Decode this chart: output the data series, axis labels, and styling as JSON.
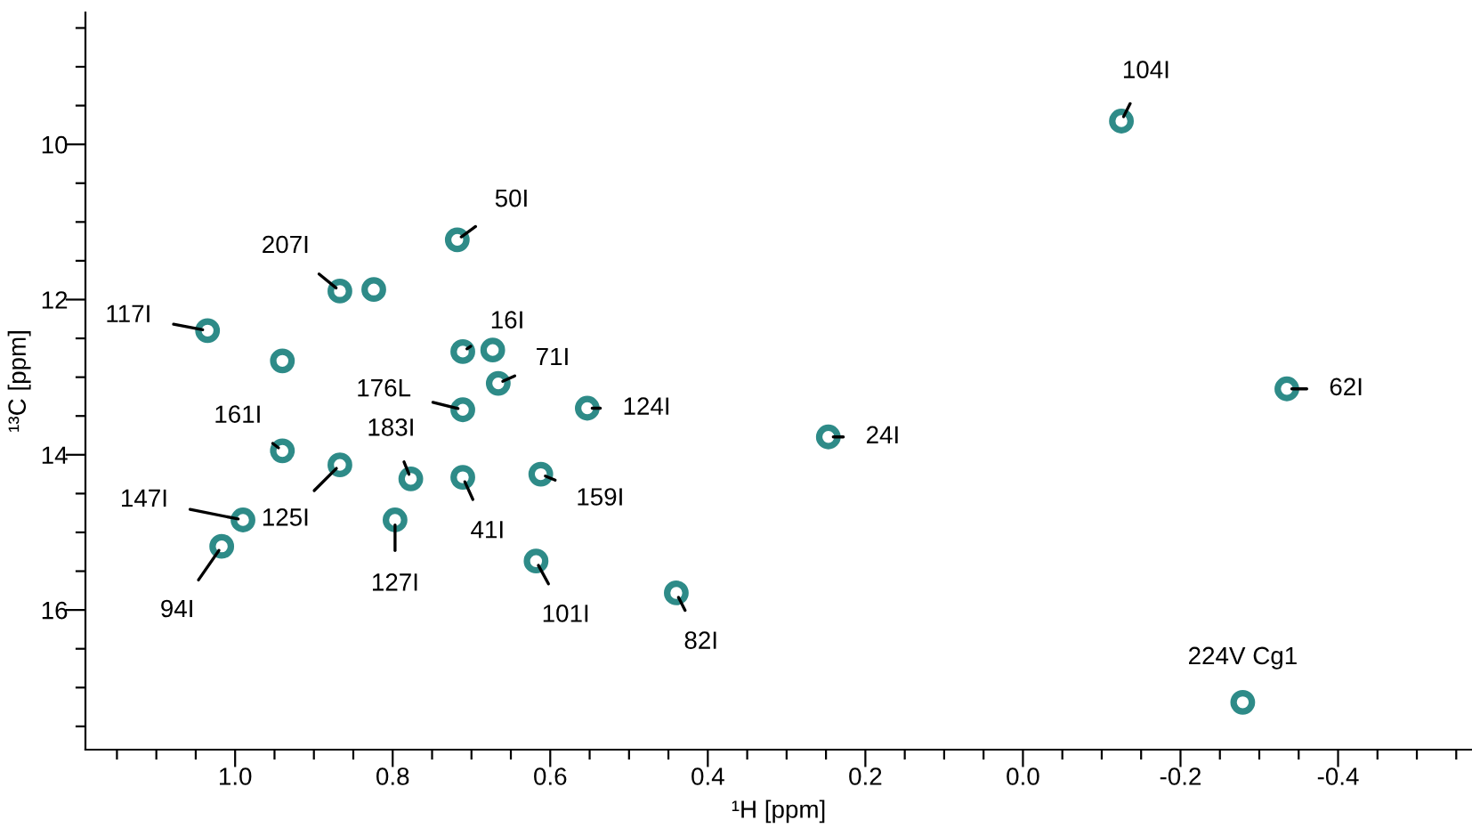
{
  "chart_data": {
    "type": "scatter",
    "xlabel": "¹H [ppm]",
    "ylabel": "¹³C [ppm]",
    "xlim": [
      1.19,
      -0.57
    ],
    "ylim": [
      17.8,
      8.3
    ],
    "xticks": [
      {
        "value": 1.15,
        "label": null
      },
      {
        "value": 1.1,
        "label": null
      },
      {
        "value": 1.05,
        "label": null
      },
      {
        "value": 1.0,
        "label": "1.0"
      },
      {
        "value": 0.95,
        "label": null
      },
      {
        "value": 0.9,
        "label": null
      },
      {
        "value": 0.85,
        "label": null
      },
      {
        "value": 0.8,
        "label": "0.8"
      },
      {
        "value": 0.75,
        "label": null
      },
      {
        "value": 0.7,
        "label": null
      },
      {
        "value": 0.65,
        "label": null
      },
      {
        "value": 0.6,
        "label": "0.6"
      },
      {
        "value": 0.55,
        "label": null
      },
      {
        "value": 0.5,
        "label": null
      },
      {
        "value": 0.45,
        "label": null
      },
      {
        "value": 0.4,
        "label": "0.4"
      },
      {
        "value": 0.35,
        "label": null
      },
      {
        "value": 0.3,
        "label": null
      },
      {
        "value": 0.25,
        "label": null
      },
      {
        "value": 0.2,
        "label": "0.2"
      },
      {
        "value": 0.15,
        "label": null
      },
      {
        "value": 0.1,
        "label": null
      },
      {
        "value": 0.05,
        "label": null
      },
      {
        "value": 0.0,
        "label": "0.0"
      },
      {
        "value": -0.05,
        "label": null
      },
      {
        "value": -0.1,
        "label": null
      },
      {
        "value": -0.15,
        "label": null
      },
      {
        "value": -0.2,
        "label": "-0.2"
      },
      {
        "value": -0.25,
        "label": null
      },
      {
        "value": -0.3,
        "label": null
      },
      {
        "value": -0.35,
        "label": null
      },
      {
        "value": -0.4,
        "label": "-0.4"
      },
      {
        "value": -0.45,
        "label": null
      },
      {
        "value": -0.5,
        "label": null
      },
      {
        "value": -0.55,
        "label": null
      }
    ],
    "yticks": [
      {
        "value": 8.5,
        "label": null
      },
      {
        "value": 9,
        "label": null
      },
      {
        "value": 9.5,
        "label": null
      },
      10,
      {
        "value": 10.5,
        "label": null
      },
      {
        "value": 11,
        "label": null
      },
      {
        "value": 11.5,
        "label": null
      },
      12,
      {
        "value": 12.5,
        "label": null
      },
      {
        "value": 13,
        "label": null
      },
      {
        "value": 13.5,
        "label": null
      },
      14,
      {
        "value": 14.5,
        "label": null
      },
      {
        "value": 15,
        "label": null
      },
      {
        "value": 15.5,
        "label": null
      },
      16,
      {
        "value": 16.5,
        "label": null
      },
      {
        "value": 17,
        "label": null
      },
      {
        "value": 17.5,
        "label": null
      }
    ],
    "grid": false,
    "marker": "circle",
    "series": [
      {
        "color": "#2e8b88",
        "x": [
          1.035,
          0.867,
          0.718,
          0.711,
          0.666,
          0.711,
          0.94,
          0.867,
          0.777,
          0.711,
          0.99,
          1.017,
          0.797,
          0.612,
          0.618,
          0.553,
          0.44,
          -0.125,
          0.247,
          -0.335,
          -0.279,
          0.824,
          0.94,
          0.673
        ],
        "values": [
          12.4,
          11.89,
          11.23,
          12.67,
          13.08,
          13.42,
          13.95,
          14.13,
          14.31,
          14.29,
          14.84,
          15.18,
          14.84,
          14.25,
          15.37,
          13.4,
          15.78,
          9.7,
          13.77,
          13.15,
          17.19,
          11.87,
          12.79,
          12.65
        ]
      }
    ],
    "annotations": [
      {
        "text": "117I",
        "x": 1.035,
        "y": 12.4
      },
      {
        "text": "207I",
        "x": 0.867,
        "y": 11.89
      },
      {
        "text": "50I",
        "x": 0.718,
        "y": 11.23
      },
      {
        "text": "16I",
        "x": 0.711,
        "y": 12.67
      },
      {
        "text": "71I",
        "x": 0.666,
        "y": 13.08
      },
      {
        "text": "176L",
        "x": 0.711,
        "y": 13.42
      },
      {
        "text": "161I",
        "x": 0.94,
        "y": 13.95
      },
      {
        "text": "125I",
        "x": 0.867,
        "y": 14.13
      },
      {
        "text": "183I",
        "x": 0.777,
        "y": 14.31
      },
      {
        "text": "41I",
        "x": 0.711,
        "y": 14.29
      },
      {
        "text": "147I",
        "x": 0.99,
        "y": 14.84
      },
      {
        "text": "94I",
        "x": 1.017,
        "y": 15.18
      },
      {
        "text": "127I",
        "x": 0.797,
        "y": 14.84
      },
      {
        "text": "159I",
        "x": 0.612,
        "y": 14.25
      },
      {
        "text": "101I",
        "x": 0.618,
        "y": 15.37
      },
      {
        "text": "124I",
        "x": 0.553,
        "y": 13.4
      },
      {
        "text": "82I",
        "x": 0.44,
        "y": 15.78
      },
      {
        "text": "104I",
        "x": -0.125,
        "y": 9.7
      },
      {
        "text": "24I",
        "x": 0.247,
        "y": 13.77
      },
      {
        "text": "62I",
        "x": -0.335,
        "y": 13.15
      },
      {
        "text": "224V Cg1",
        "x": -0.279,
        "y": 17.19
      }
    ]
  }
}
